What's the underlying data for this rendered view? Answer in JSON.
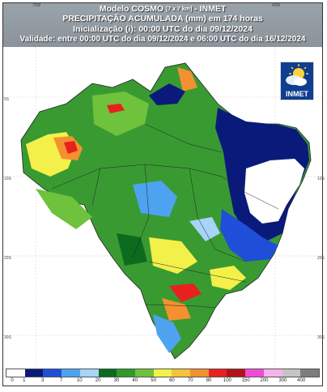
{
  "header": {
    "line1_main": "Modelo COSMO",
    "line1_small": "[7 x 7 km]",
    "line1_tail": "- INMET",
    "line2": "PRECIPITAÇÃO ACUMULADA (mm) em 174 horas",
    "line3": "Inicialização (i): 00:00 UTC do dia 09/12/2024",
    "line4": "Validade: entre 00:00 UTC do dia 09/12/2024 e 06:00 UTC do dia 16/12/2024"
  },
  "logo": {
    "text": "INMET",
    "icon": "sun-cloud-icon"
  },
  "axis_ticks": {
    "top": [
      "70W",
      "40W"
    ],
    "left": [
      "5S",
      "10S",
      "20S",
      "30S"
    ],
    "right": [
      "10S",
      "20S",
      "30S"
    ]
  },
  "legend": {
    "labels": [
      "0",
      "1",
      "3",
      "7",
      "10",
      "20",
      "30",
      "40",
      "50",
      "60",
      "70",
      "80",
      "100",
      "150",
      "200",
      "300",
      "400"
    ],
    "colors": [
      "#ffffff",
      "#0a1a7a",
      "#1f4fd8",
      "#4da3f0",
      "#a8d4f7",
      "#0b6b1e",
      "#2e9a2a",
      "#6ec23c",
      "#f3f04a",
      "#f6c23a",
      "#f3902f",
      "#e8201e",
      "#b3121a",
      "#f24ad8",
      "#f6b3ea",
      "#c4c4c4",
      "#7d7d7d"
    ]
  }
}
